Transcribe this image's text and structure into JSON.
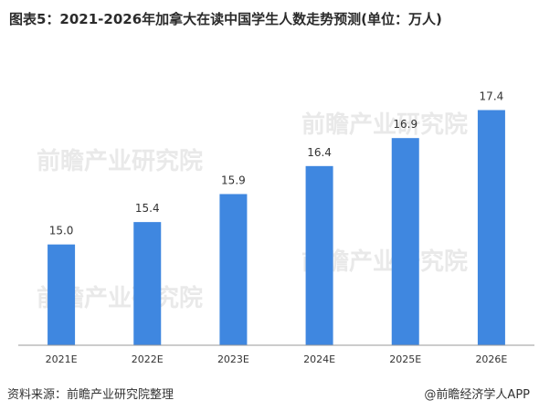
{
  "title": "图表5：2021-2026年加拿大在读中国学生人数走势预测(单位：万人)",
  "source": "资料来源：前瞻产业研究院整理",
  "brand": "@前瞻经济学人APP",
  "watermark": "前瞻产业研究院",
  "colors": {
    "bar": "#3f87e0",
    "axis": "#9a9a9a",
    "text": "#333333"
  },
  "chart_data": {
    "type": "bar",
    "categories": [
      "2021E",
      "2022E",
      "2023E",
      "2024E",
      "2025E",
      "2026E"
    ],
    "values": [
      15.0,
      15.4,
      15.9,
      16.4,
      16.9,
      17.4
    ],
    "data_labels": [
      "15.0",
      "15.4",
      "15.9",
      "16.4",
      "16.9",
      "17.4"
    ],
    "title": "图表5：2021-2026年加拿大在读中国学生人数走势预测(单位：万人)",
    "xlabel": "",
    "ylabel": "",
    "ylim": [
      13.2,
      17.8
    ],
    "grid": false,
    "legend": "none"
  }
}
